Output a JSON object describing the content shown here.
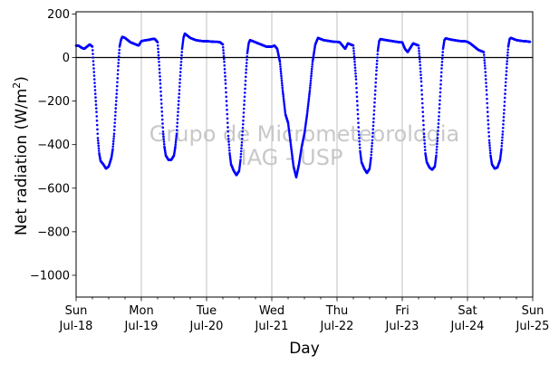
{
  "chart_data": {
    "type": "scatter",
    "xlabel": "Day",
    "ylabel": "Net radiation (W/m²)",
    "ylabel_parts": {
      "main": "Net radiation (W/m",
      "sup": "2",
      "close": ")"
    },
    "watermark": [
      "Grupo de Micrometeorologia",
      "IAG - USP"
    ],
    "xlim": [
      "2021-07-18",
      "2021-07-25"
    ],
    "ylim": [
      -1100,
      210
    ],
    "yticks": [
      200,
      0,
      -200,
      -400,
      -600,
      -800,
      -1000
    ],
    "ytick_labels": [
      "200",
      "0",
      "−200",
      "−400",
      "−600",
      "−800",
      "−1000"
    ],
    "xticks": [
      {
        "date": "2021-07-18",
        "day": "Sun",
        "label": "Jul-18"
      },
      {
        "date": "2021-07-19",
        "day": "Mon",
        "label": "Jul-19"
      },
      {
        "date": "2021-07-20",
        "day": "Tue",
        "label": "Jul-20"
      },
      {
        "date": "2021-07-21",
        "day": "Wed",
        "label": "Jul-21"
      },
      {
        "date": "2021-07-22",
        "day": "Thu",
        "label": "Jul-22"
      },
      {
        "date": "2021-07-23",
        "day": "Fri",
        "label": "Jul-23"
      },
      {
        "date": "2021-07-24",
        "day": "Sat",
        "label": "Jul-24"
      },
      {
        "date": "2021-07-25",
        "day": "Sun",
        "label": "Jul-25"
      }
    ],
    "grid": "vertical",
    "zero_line": 0,
    "series": [
      {
        "color": "#0000ff",
        "points": [
          [
            "2021-07-18 00:00",
            55
          ],
          [
            "2021-07-18 01:00",
            54
          ],
          [
            "2021-07-18 02:00",
            45
          ],
          [
            "2021-07-18 03:00",
            40
          ],
          [
            "2021-07-18 04:00",
            50
          ],
          [
            "2021-07-18 05:00",
            60
          ],
          [
            "2021-07-18 06:00",
            50
          ],
          [
            "2021-07-18 06:30",
            -50
          ],
          [
            "2021-07-18 07:00",
            -150
          ],
          [
            "2021-07-18 07:30",
            -250
          ],
          [
            "2021-07-18 08:00",
            -370
          ],
          [
            "2021-07-18 08:30",
            -440
          ],
          [
            "2021-07-18 09:00",
            -475
          ],
          [
            "2021-07-18 10:00",
            -490
          ],
          [
            "2021-07-18 11:00",
            -510
          ],
          [
            "2021-07-18 12:00",
            -500
          ],
          [
            "2021-07-18 13:00",
            -460
          ],
          [
            "2021-07-18 13:30",
            -420
          ],
          [
            "2021-07-18 14:00",
            -350
          ],
          [
            "2021-07-18 14:30",
            -250
          ],
          [
            "2021-07-18 15:00",
            -150
          ],
          [
            "2021-07-18 15:30",
            -40
          ],
          [
            "2021-07-18 16:00",
            50
          ],
          [
            "2021-07-18 16:30",
            80
          ],
          [
            "2021-07-18 17:00",
            95
          ],
          [
            "2021-07-18 18:00",
            90
          ],
          [
            "2021-07-18 19:00",
            80
          ],
          [
            "2021-07-18 20:00",
            70
          ],
          [
            "2021-07-18 21:00",
            65
          ],
          [
            "2021-07-18 22:00",
            60
          ],
          [
            "2021-07-18 23:00",
            55
          ],
          [
            "2021-07-19 00:00",
            75
          ],
          [
            "2021-07-19 01:00",
            78
          ],
          [
            "2021-07-19 02:00",
            80
          ],
          [
            "2021-07-19 03:00",
            82
          ],
          [
            "2021-07-19 04:00",
            85
          ],
          [
            "2021-07-19 05:00",
            85
          ],
          [
            "2021-07-19 06:00",
            70
          ],
          [
            "2021-07-19 06:30",
            -20
          ],
          [
            "2021-07-19 07:00",
            -120
          ],
          [
            "2021-07-19 07:30",
            -230
          ],
          [
            "2021-07-19 08:00",
            -340
          ],
          [
            "2021-07-19 08:30",
            -410
          ],
          [
            "2021-07-19 09:00",
            -450
          ],
          [
            "2021-07-19 10:00",
            -470
          ],
          [
            "2021-07-19 11:00",
            -470
          ],
          [
            "2021-07-19 12:00",
            -450
          ],
          [
            "2021-07-19 12:30",
            -410
          ],
          [
            "2021-07-19 13:00",
            -350
          ],
          [
            "2021-07-19 13:30",
            -250
          ],
          [
            "2021-07-19 14:00",
            -150
          ],
          [
            "2021-07-19 14:30",
            -50
          ],
          [
            "2021-07-19 15:00",
            40
          ],
          [
            "2021-07-19 15:30",
            90
          ],
          [
            "2021-07-19 16:00",
            110
          ],
          [
            "2021-07-19 17:00",
            100
          ],
          [
            "2021-07-19 18:00",
            90
          ],
          [
            "2021-07-19 19:00",
            85
          ],
          [
            "2021-07-19 20:00",
            80
          ],
          [
            "2021-07-19 21:00",
            78
          ],
          [
            "2021-07-19 22:00",
            76
          ],
          [
            "2021-07-19 23:00",
            75
          ],
          [
            "2021-07-20 00:00",
            75
          ],
          [
            "2021-07-20 01:00",
            74
          ],
          [
            "2021-07-20 02:00",
            73
          ],
          [
            "2021-07-20 03:00",
            72
          ],
          [
            "2021-07-20 04:00",
            72
          ],
          [
            "2021-07-20 05:00",
            70
          ],
          [
            "2021-07-20 06:00",
            60
          ],
          [
            "2021-07-20 06:30",
            -20
          ],
          [
            "2021-07-20 07:00",
            -120
          ],
          [
            "2021-07-20 07:30",
            -240
          ],
          [
            "2021-07-20 08:00",
            -360
          ],
          [
            "2021-07-20 08:30",
            -440
          ],
          [
            "2021-07-20 09:00",
            -490
          ],
          [
            "2021-07-20 10:00",
            -520
          ],
          [
            "2021-07-20 11:00",
            -540
          ],
          [
            "2021-07-20 12:00",
            -520
          ],
          [
            "2021-07-20 12:30",
            -470
          ],
          [
            "2021-07-20 13:00",
            -390
          ],
          [
            "2021-07-20 13:30",
            -290
          ],
          [
            "2021-07-20 14:00",
            -180
          ],
          [
            "2021-07-20 14:30",
            -70
          ],
          [
            "2021-07-20 15:00",
            20
          ],
          [
            "2021-07-20 15:30",
            65
          ],
          [
            "2021-07-20 16:00",
            80
          ],
          [
            "2021-07-20 17:00",
            75
          ],
          [
            "2021-07-20 18:00",
            70
          ],
          [
            "2021-07-20 19:00",
            65
          ],
          [
            "2021-07-20 20:00",
            60
          ],
          [
            "2021-07-20 21:00",
            55
          ],
          [
            "2021-07-20 22:00",
            50
          ],
          [
            "2021-07-20 23:00",
            50
          ],
          [
            "2021-07-21 00:00",
            50
          ],
          [
            "2021-07-21 01:00",
            55
          ],
          [
            "2021-07-21 02:00",
            40
          ],
          [
            "2021-07-21 03:00",
            -20
          ],
          [
            "2021-07-21 04:00",
            -150
          ],
          [
            "2021-07-21 05:00",
            -260
          ],
          [
            "2021-07-21 06:00",
            -300
          ],
          [
            "2021-07-21 07:00",
            -400
          ],
          [
            "2021-07-21 08:00",
            -500
          ],
          [
            "2021-07-21 09:00",
            -550
          ],
          [
            "2021-07-21 10:00",
            -490
          ],
          [
            "2021-07-21 11:00",
            -410
          ],
          [
            "2021-07-21 12:00",
            -350
          ],
          [
            "2021-07-21 13:00",
            -260
          ],
          [
            "2021-07-21 14:00",
            -150
          ],
          [
            "2021-07-21 15:00",
            -20
          ],
          [
            "2021-07-21 16:00",
            60
          ],
          [
            "2021-07-21 17:00",
            90
          ],
          [
            "2021-07-21 18:00",
            85
          ],
          [
            "2021-07-21 19:00",
            80
          ],
          [
            "2021-07-21 20:00",
            78
          ],
          [
            "2021-07-21 21:00",
            76
          ],
          [
            "2021-07-21 22:00",
            74
          ],
          [
            "2021-07-21 23:00",
            72
          ],
          [
            "2021-07-22 00:00",
            72
          ],
          [
            "2021-07-22 01:00",
            70
          ],
          [
            "2021-07-22 02:00",
            55
          ],
          [
            "2021-07-22 03:00",
            40
          ],
          [
            "2021-07-22 04:00",
            65
          ],
          [
            "2021-07-22 05:00",
            60
          ],
          [
            "2021-07-22 06:00",
            55
          ],
          [
            "2021-07-22 06:30",
            -20
          ],
          [
            "2021-07-22 07:00",
            -100
          ],
          [
            "2021-07-22 07:30",
            -220
          ],
          [
            "2021-07-22 08:00",
            -340
          ],
          [
            "2021-07-22 08:30",
            -430
          ],
          [
            "2021-07-22 09:00",
            -480
          ],
          [
            "2021-07-22 10:00",
            -510
          ],
          [
            "2021-07-22 11:00",
            -530
          ],
          [
            "2021-07-22 12:00",
            -510
          ],
          [
            "2021-07-22 12:30",
            -460
          ],
          [
            "2021-07-22 13:00",
            -380
          ],
          [
            "2021-07-22 13:30",
            -280
          ],
          [
            "2021-07-22 14:00",
            -170
          ],
          [
            "2021-07-22 14:30",
            -60
          ],
          [
            "2021-07-22 15:00",
            30
          ],
          [
            "2021-07-22 15:30",
            75
          ],
          [
            "2021-07-22 16:00",
            85
          ],
          [
            "2021-07-22 17:00",
            82
          ],
          [
            "2021-07-22 18:00",
            80
          ],
          [
            "2021-07-22 19:00",
            78
          ],
          [
            "2021-07-22 20:00",
            76
          ],
          [
            "2021-07-22 21:00",
            74
          ],
          [
            "2021-07-22 22:00",
            72
          ],
          [
            "2021-07-22 23:00",
            70
          ],
          [
            "2021-07-23 00:00",
            70
          ],
          [
            "2021-07-23 01:00",
            40
          ],
          [
            "2021-07-23 02:00",
            25
          ],
          [
            "2021-07-23 03:00",
            45
          ],
          [
            "2021-07-23 04:00",
            65
          ],
          [
            "2021-07-23 05:00",
            60
          ],
          [
            "2021-07-23 06:00",
            55
          ],
          [
            "2021-07-23 06:30",
            -20
          ],
          [
            "2021-07-23 07:00",
            -110
          ],
          [
            "2021-07-23 07:30",
            -230
          ],
          [
            "2021-07-23 08:00",
            -350
          ],
          [
            "2021-07-23 08:30",
            -440
          ],
          [
            "2021-07-23 09:00",
            -480
          ],
          [
            "2021-07-23 10:00",
            -505
          ],
          [
            "2021-07-23 11:00",
            -515
          ],
          [
            "2021-07-23 12:00",
            -500
          ],
          [
            "2021-07-23 12:30",
            -450
          ],
          [
            "2021-07-23 13:00",
            -370
          ],
          [
            "2021-07-23 13:30",
            -270
          ],
          [
            "2021-07-23 14:00",
            -160
          ],
          [
            "2021-07-23 14:30",
            -50
          ],
          [
            "2021-07-23 15:00",
            40
          ],
          [
            "2021-07-23 15:30",
            80
          ],
          [
            "2021-07-23 16:00",
            88
          ],
          [
            "2021-07-23 17:00",
            85
          ],
          [
            "2021-07-23 18:00",
            82
          ],
          [
            "2021-07-23 19:00",
            80
          ],
          [
            "2021-07-23 20:00",
            78
          ],
          [
            "2021-07-23 21:00",
            76
          ],
          [
            "2021-07-23 22:00",
            75
          ],
          [
            "2021-07-23 23:00",
            75
          ],
          [
            "2021-07-24 00:00",
            72
          ],
          [
            "2021-07-24 01:00",
            65
          ],
          [
            "2021-07-24 02:00",
            55
          ],
          [
            "2021-07-24 03:00",
            45
          ],
          [
            "2021-07-24 04:00",
            35
          ],
          [
            "2021-07-24 05:00",
            30
          ],
          [
            "2021-07-24 06:00",
            25
          ],
          [
            "2021-07-24 06:30",
            -50
          ],
          [
            "2021-07-24 07:00",
            -150
          ],
          [
            "2021-07-24 07:30",
            -270
          ],
          [
            "2021-07-24 08:00",
            -380
          ],
          [
            "2021-07-24 08:30",
            -450
          ],
          [
            "2021-07-24 09:00",
            -490
          ],
          [
            "2021-07-24 10:00",
            -510
          ],
          [
            "2021-07-24 11:00",
            -505
          ],
          [
            "2021-07-24 12:00",
            -470
          ],
          [
            "2021-07-24 12:30",
            -420
          ],
          [
            "2021-07-24 13:00",
            -340
          ],
          [
            "2021-07-24 13:30",
            -240
          ],
          [
            "2021-07-24 14:00",
            -130
          ],
          [
            "2021-07-24 14:30",
            -30
          ],
          [
            "2021-07-24 15:00",
            50
          ],
          [
            "2021-07-24 15:30",
            85
          ],
          [
            "2021-07-24 16:00",
            90
          ],
          [
            "2021-07-24 17:00",
            85
          ],
          [
            "2021-07-24 18:00",
            80
          ],
          [
            "2021-07-24 19:00",
            78
          ],
          [
            "2021-07-24 20:00",
            76
          ],
          [
            "2021-07-24 21:00",
            75
          ],
          [
            "2021-07-24 22:00",
            74
          ],
          [
            "2021-07-24 23:00",
            72
          ]
        ]
      }
    ]
  }
}
